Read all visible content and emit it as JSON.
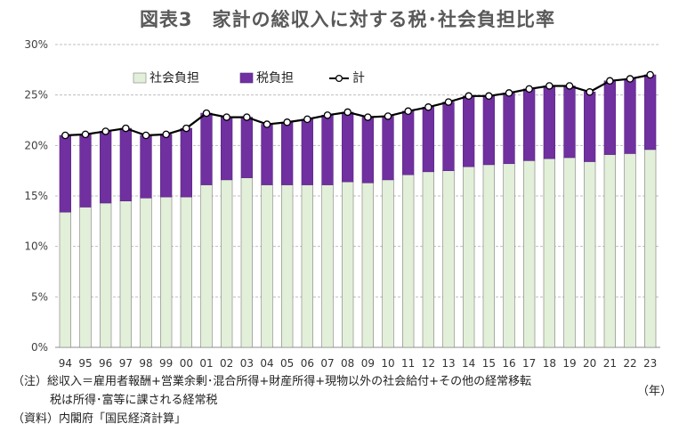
{
  "title": "図表3　家計の総収入に対する税･社会負担比率",
  "year_unit": "（年）",
  "notes": {
    "note_line1": "（注）総収入＝雇用者報酬+営業余剰･混合所得+財産所得+現物以外の社会給付+その他の経常移転",
    "note_line2": "税は所得･富等に課される経常税",
    "source": "（資料）内閣府「国民経済計算」"
  },
  "colors": {
    "social": "#e2efd9",
    "tax": "#7030a0",
    "total_line": "#000000",
    "grid": "#bfbfbf"
  },
  "chart_data": {
    "type": "bar",
    "stacked": true,
    "categories": [
      "94",
      "95",
      "96",
      "97",
      "98",
      "99",
      "00",
      "01",
      "02",
      "03",
      "04",
      "05",
      "06",
      "07",
      "08",
      "09",
      "10",
      "11",
      "12",
      "13",
      "14",
      "15",
      "16",
      "17",
      "18",
      "19",
      "20",
      "21",
      "22",
      "23"
    ],
    "series": [
      {
        "name": "社会負担",
        "values": [
          13.4,
          13.9,
          14.3,
          14.5,
          14.8,
          14.9,
          14.9,
          16.1,
          16.6,
          16.8,
          16.1,
          16.1,
          16.1,
          16.1,
          16.4,
          16.3,
          16.6,
          17.1,
          17.4,
          17.5,
          17.9,
          18.1,
          18.2,
          18.5,
          18.7,
          18.8,
          18.4,
          19.1,
          19.2,
          19.6
        ]
      },
      {
        "name": "税負担",
        "values": [
          7.6,
          7.2,
          7.1,
          7.2,
          6.2,
          6.2,
          6.8,
          7.1,
          6.2,
          6.0,
          6.0,
          6.2,
          6.5,
          6.9,
          6.9,
          6.5,
          6.3,
          6.3,
          6.4,
          6.8,
          7.0,
          6.8,
          7.0,
          7.1,
          7.2,
          7.1,
          6.9,
          7.3,
          7.4,
          7.4
        ]
      }
    ],
    "line": {
      "name": "計",
      "values": [
        21.0,
        21.1,
        21.4,
        21.7,
        21.0,
        21.1,
        21.7,
        23.2,
        22.8,
        22.8,
        22.1,
        22.3,
        22.6,
        23.0,
        23.3,
        22.8,
        22.9,
        23.4,
        23.8,
        24.3,
        24.9,
        24.9,
        25.2,
        25.6,
        25.9,
        25.9,
        25.3,
        26.4,
        26.6,
        27.0
      ]
    },
    "ylim": [
      0,
      30
    ],
    "yticks": [
      0,
      5,
      10,
      15,
      20,
      25,
      30
    ],
    "ytick_labels": [
      "0%",
      "5%",
      "10%",
      "15%",
      "20%",
      "25%",
      "30%"
    ],
    "grid": true,
    "legend_position": "top-left"
  }
}
